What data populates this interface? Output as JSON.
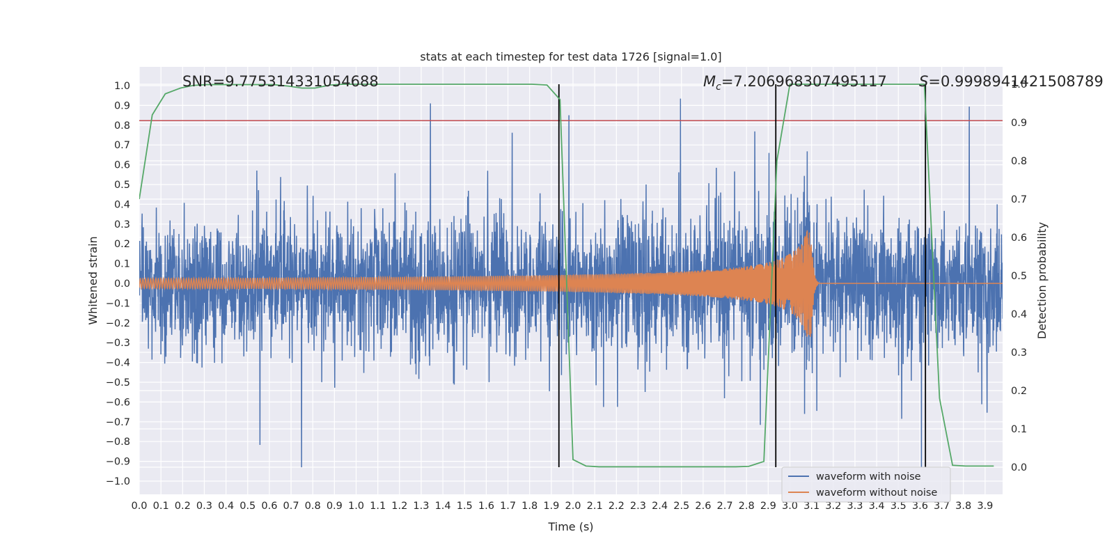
{
  "chart_data": {
    "type": "line",
    "title": "stats at each timestep for test data 1726 [signal=1.0]",
    "xlabel": "Time (s)",
    "ylabel": "Whitened strain",
    "y2label": "Detection probability",
    "xlim": [
      0.0,
      3.99
    ],
    "ylim": [
      -1.05,
      1.1
    ],
    "y2lim": [
      -0.045,
      1.1
    ],
    "xticks": [
      "0.0",
      "0.1",
      "0.2",
      "0.3",
      "0.4",
      "0.5",
      "0.6",
      "0.7",
      "0.8",
      "0.9",
      "1.0",
      "1.1",
      "1.2",
      "1.3",
      "1.4",
      "1.5",
      "1.6",
      "1.7",
      "1.8",
      "1.9",
      "2.0",
      "2.1",
      "2.2",
      "2.3",
      "2.4",
      "2.5",
      "2.6",
      "2.7",
      "2.8",
      "2.9",
      "3.0",
      "3.1",
      "3.2",
      "3.3",
      "3.4",
      "3.5",
      "3.6",
      "3.7",
      "3.8",
      "3.9"
    ],
    "yticks": [
      "1.0",
      "0.9",
      "0.8",
      "0.7",
      "0.6",
      "0.5",
      "0.4",
      "0.3",
      "0.2",
      "0.1",
      "0.0",
      "−0.1",
      "−0.2",
      "−0.3",
      "−0.4",
      "−0.5",
      "−0.6",
      "−0.7",
      "−0.8",
      "−0.9",
      "−1.0"
    ],
    "y2ticks": [
      "1.0",
      "0.9",
      "0.8",
      "0.7",
      "0.6",
      "0.5",
      "0.4",
      "0.3",
      "0.2",
      "0.1",
      "0.0"
    ],
    "grid": true,
    "legend_position": "lower-right",
    "series": [
      {
        "name": "waveform with noise",
        "color": "#4c72b0",
        "description_values": {
          "typical_amplitude": 0.35,
          "max": 1.0,
          "min": -0.93
        }
      },
      {
        "name": "waveform without noise",
        "color": "#dd8452",
        "chirp": {
          "start_amplitude": 0.025,
          "peak_amplitude": 0.27,
          "merger_time": 3.1,
          "start_freq": 30,
          "end_freq": 200
        }
      },
      {
        "axis": "y2",
        "color": "#55a868",
        "x": [
          0.0,
          0.06,
          0.12,
          0.19,
          0.25,
          0.31,
          0.38,
          0.44,
          0.5,
          0.56,
          0.62,
          0.69,
          0.75,
          0.81,
          0.88,
          0.94,
          1.0,
          1.06,
          1.12,
          1.19,
          1.25,
          1.31,
          1.38,
          1.44,
          1.5,
          1.56,
          1.62,
          1.69,
          1.75,
          1.81,
          1.88,
          1.94,
          2.0,
          2.06,
          2.12,
          2.19,
          2.25,
          2.31,
          2.38,
          2.44,
          2.5,
          2.56,
          2.62,
          2.69,
          2.75,
          2.81,
          2.88,
          2.94,
          3.0,
          3.06,
          3.12,
          3.19,
          3.25,
          3.31,
          3.38,
          3.44,
          3.5,
          3.56,
          3.62,
          3.69,
          3.75,
          3.81,
          3.88,
          3.94
        ],
        "values": [
          0.7,
          0.92,
          0.975,
          0.99,
          0.997,
          0.999,
          0.999,
          0.999,
          0.999,
          0.999,
          0.999,
          0.995,
          0.99,
          0.99,
          0.998,
          1.0,
          1.0,
          1.0,
          1.0,
          1.0,
          1.0,
          1.0,
          1.0,
          1.0,
          1.0,
          1.0,
          1.0,
          1.0,
          1.0,
          1.0,
          0.998,
          0.96,
          0.02,
          0.003,
          0.001,
          0.001,
          0.001,
          0.001,
          0.001,
          0.001,
          0.001,
          0.001,
          0.001,
          0.001,
          0.001,
          0.002,
          0.015,
          0.8,
          1.0,
          1.0,
          1.0,
          1.0,
          1.0,
          1.0,
          1.0,
          1.0,
          1.0,
          1.0,
          1.0,
          0.18,
          0.005,
          0.003,
          0.003,
          0.003
        ]
      }
    ],
    "threshold": {
      "axis": "y2",
      "value": 0.905,
      "color": "#c44e52"
    },
    "vlines": [
      {
        "x": 1.935,
        "y2range": [
          0.0,
          1.0
        ],
        "color": "#000000"
      },
      {
        "x": 2.935,
        "y2range": [
          0.0,
          1.0
        ],
        "color": "#000000"
      },
      {
        "x": 3.625,
        "y2range": [
          0.0,
          1.0
        ],
        "color": "#000000"
      }
    ],
    "annotations": [
      {
        "key": "snr",
        "text": "SNR=9.775314331054688",
        "html": "SNR=9.775314331054688"
      },
      {
        "key": "mc",
        "prefix": "M",
        "sub": "c",
        "text": "=7.206968307495117"
      },
      {
        "key": "s",
        "prefix": "S",
        "text": "=0.9998941421508789"
      }
    ]
  }
}
